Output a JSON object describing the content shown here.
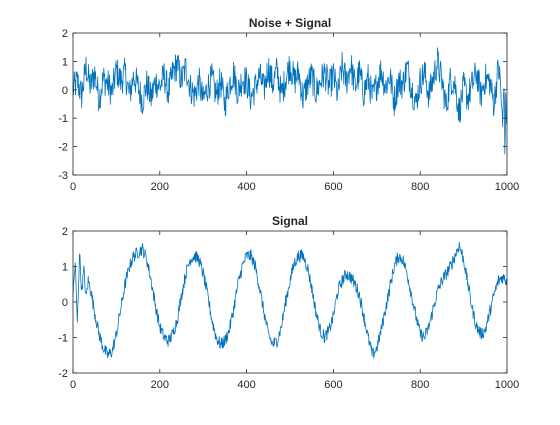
{
  "chart_data": [
    {
      "type": "line",
      "title": "Noise + Signal",
      "xlabel": "",
      "ylabel": "",
      "xlim": [
        0,
        1000
      ],
      "ylim": [
        -3,
        2
      ],
      "xticks": [
        0,
        200,
        400,
        600,
        800,
        1000
      ],
      "yticks": [
        -3,
        -2,
        -1,
        0,
        1,
        2
      ],
      "grid": false,
      "legend": "none",
      "color": "#0072BD",
      "series": [
        {
          "x": [
            0,
            10,
            20,
            30,
            40,
            50,
            60,
            70,
            80,
            90,
            100,
            110,
            120,
            130,
            140,
            150,
            160,
            170,
            180,
            190,
            200,
            210,
            220,
            230,
            240,
            250,
            260,
            270,
            280,
            290,
            300,
            310,
            320,
            330,
            340,
            350,
            360,
            370,
            380,
            390,
            400,
            410,
            420,
            430,
            440,
            450,
            460,
            470,
            480,
            490,
            500,
            510,
            520,
            530,
            540,
            550,
            560,
            570,
            580,
            590,
            600,
            610,
            620,
            630,
            640,
            650,
            660,
            670,
            680,
            690,
            700,
            710,
            720,
            730,
            740,
            750,
            760,
            770,
            780,
            790,
            800,
            810,
            820,
            830,
            840,
            850,
            860,
            870,
            880,
            890,
            900,
            910,
            920,
            930,
            940,
            950,
            960,
            970,
            980,
            985,
            990,
            993,
            995,
            997,
            1000
          ],
          "values": [
            0.0,
            0.3,
            -0.2,
            0.8,
            0.1,
            0.6,
            -0.3,
            0.4,
            0.2,
            -0.1,
            0.7,
            0.3,
            0.6,
            -0.2,
            0.5,
            0.1,
            -0.4,
            0.2,
            -0.3,
            0.3,
            0.1,
            0.5,
            -0.1,
            0.6,
            0.9,
            0.3,
            0.8,
            0.1,
            -0.2,
            0.3,
            -0.4,
            0.1,
            0.4,
            -0.2,
            0.3,
            -0.5,
            0.2,
            0.6,
            -0.1,
            0.4,
            0.3,
            -0.3,
            0.1,
            0.5,
            0.0,
            0.8,
            0.2,
            0.7,
            -0.2,
            0.4,
            0.9,
            0.3,
            0.6,
            -0.3,
            0.2,
            0.5,
            -0.1,
            0.3,
            0.6,
            0.1,
            0.5,
            -0.2,
            0.8,
            0.3,
            0.9,
            0.1,
            0.6,
            -0.1,
            0.4,
            -0.3,
            0.2,
            0.7,
            0.1,
            0.5,
            -0.4,
            0.3,
            0.2,
            0.8,
            0.1,
            -0.5,
            0.3,
            0.6,
            -0.2,
            0.4,
            1.0,
            0.3,
            -0.6,
            0.4,
            0.2,
            -0.8,
            0.1,
            -0.3,
            0.2,
            0.6,
            -0.2,
            0.4,
            0.3,
            -0.5,
            0.8,
            0.2,
            -1.4,
            0.5,
            -2.1,
            -0.6,
            -1.0
          ]
        }
      ]
    },
    {
      "type": "line",
      "title": "Signal",
      "xlabel": "",
      "ylabel": "",
      "xlim": [
        0,
        1000
      ],
      "ylim": [
        -2,
        2
      ],
      "xticks": [
        0,
        200,
        400,
        600,
        800,
        1000
      ],
      "yticks": [
        -2,
        -1,
        0,
        1,
        2
      ],
      "grid": false,
      "legend": "none",
      "color": "#0072BD",
      "series": [
        {
          "x": [
            0,
            5,
            10,
            15,
            20,
            25,
            30,
            35,
            40,
            50,
            60,
            70,
            80,
            90,
            100,
            110,
            120,
            130,
            140,
            150,
            160,
            170,
            180,
            190,
            200,
            210,
            220,
            230,
            240,
            250,
            260,
            270,
            280,
            290,
            300,
            310,
            320,
            330,
            340,
            350,
            360,
            370,
            380,
            390,
            400,
            410,
            420,
            430,
            440,
            450,
            460,
            470,
            480,
            490,
            500,
            510,
            520,
            530,
            540,
            550,
            560,
            570,
            580,
            590,
            600,
            610,
            620,
            630,
            640,
            650,
            660,
            670,
            680,
            690,
            700,
            710,
            720,
            730,
            740,
            750,
            760,
            770,
            780,
            790,
            800,
            810,
            820,
            830,
            840,
            850,
            860,
            870,
            880,
            890,
            900,
            910,
            920,
            930,
            940,
            950,
            960,
            970,
            980,
            990,
            1000
          ],
          "values": [
            0.2,
            1.1,
            -0.6,
            1.4,
            0.3,
            0.9,
            0.1,
            0.6,
            0.4,
            -0.3,
            -0.9,
            -1.3,
            -1.5,
            -1.4,
            -0.9,
            -0.2,
            0.5,
            1.0,
            1.3,
            1.4,
            1.5,
            1.2,
            0.6,
            -0.1,
            -0.7,
            -1.0,
            -1.1,
            -0.9,
            -0.5,
            0.2,
            0.8,
            1.2,
            1.3,
            1.2,
            0.8,
            0.2,
            -0.5,
            -1.0,
            -1.2,
            -1.1,
            -0.8,
            -0.2,
            0.5,
            1.0,
            1.3,
            1.3,
            1.0,
            0.4,
            -0.3,
            -0.9,
            -1.2,
            -1.1,
            -0.7,
            0.0,
            0.6,
            1.1,
            1.3,
            1.3,
            1.0,
            0.4,
            -0.3,
            -0.8,
            -1.0,
            -0.8,
            -0.4,
            0.3,
            0.6,
            0.8,
            0.7,
            0.5,
            0.2,
            -0.4,
            -1.0,
            -1.5,
            -1.3,
            -0.8,
            -0.2,
            0.4,
            1.0,
            1.3,
            1.2,
            0.8,
            0.2,
            -0.4,
            -0.9,
            -1.0,
            -0.7,
            -0.2,
            0.3,
            0.6,
            0.8,
            1.0,
            1.3,
            1.6,
            1.2,
            0.5,
            -0.2,
            -0.7,
            -0.9,
            -0.8,
            -0.3,
            0.2,
            0.6,
            0.7,
            0.6
          ]
        }
      ]
    }
  ]
}
